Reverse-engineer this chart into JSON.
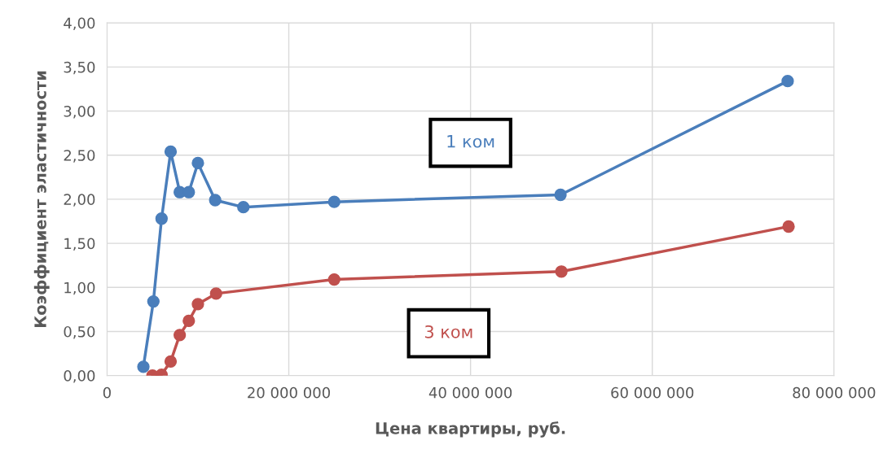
{
  "chart_data": {
    "type": "line",
    "xlabel": "Цена квартиры, руб.",
    "ylabel": "Коэффициент эластичности",
    "series": [
      {
        "name": "1 ком",
        "color": "#4a7ebb",
        "x": [
          4000000,
          5100000,
          6000000,
          7000000,
          8000000,
          9000000,
          10000000,
          11900000,
          15000000,
          25000000,
          49900000,
          74900000
        ],
        "values": [
          0.1,
          0.84,
          1.78,
          2.54,
          2.08,
          2.08,
          2.41,
          1.99,
          1.91,
          1.97,
          2.05,
          3.34
        ]
      },
      {
        "name": "3 ком",
        "color": "#c0504d",
        "x": [
          5000000,
          6000000,
          7000000,
          8000000,
          9000000,
          10000000,
          12000000,
          25000000,
          50000000,
          75000000
        ],
        "values": [
          0.0,
          0.01,
          0.16,
          0.46,
          0.62,
          0.81,
          0.93,
          1.09,
          1.18,
          1.69
        ]
      }
    ],
    "xlim": [
      0,
      80000000
    ],
    "ylim": [
      0,
      4
    ],
    "xticks": [
      0,
      {
        "value": 20000000,
        "label": "20 000 000"
      },
      {
        "value": 40000000,
        "label": "40 000 000"
      },
      {
        "value": 60000000,
        "label": "60 000 000"
      },
      {
        "value": 80000000,
        "label": "80 000 000"
      }
    ],
    "yticks": [
      {
        "value": 0,
        "label": "0,00"
      },
      {
        "value": 0.5,
        "label": "0,50"
      },
      {
        "value": 1,
        "label": "1,00"
      },
      {
        "value": 1.5,
        "label": "1,50"
      },
      {
        "value": 2,
        "label": "2,00"
      },
      {
        "value": 2.5,
        "label": "2,50"
      },
      {
        "value": 3,
        "label": "3,00"
      },
      {
        "value": 3.5,
        "label": "3,50"
      },
      {
        "value": 4,
        "label": "4,00"
      }
    ],
    "grid": true,
    "marker": "circle",
    "line_style": "solid"
  }
}
